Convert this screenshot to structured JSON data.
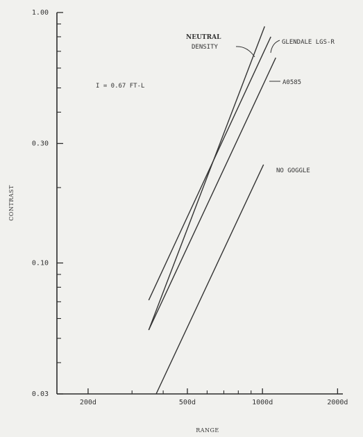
{
  "chart_data": {
    "type": "line",
    "title": "",
    "xlabel": "RANGE",
    "ylabel": "CONTRAST",
    "x_scale": "log",
    "y_scale": "log",
    "xlim": [
      150,
      2100
    ],
    "ylim": [
      0.03,
      1.0
    ],
    "x_ticks": [
      {
        "value": 200,
        "label": "200d"
      },
      {
        "value": 500,
        "label": "500d"
      },
      {
        "value": 1000,
        "label": "1000d"
      },
      {
        "value": 2000,
        "label": "2000d"
      }
    ],
    "x_minor_ticks": [
      300,
      400,
      600,
      700,
      800,
      900
    ],
    "y_ticks": [
      {
        "value": 1.0,
        "label": "1.00"
      },
      {
        "value": 0.3,
        "label": "0.30"
      },
      {
        "value": 0.1,
        "label": "0.10"
      },
      {
        "value": 0.03,
        "label": "0.03"
      }
    ],
    "y_minor_ticks": [
      0.9,
      0.8,
      0.7,
      0.6,
      0.5,
      0.4,
      0.2,
      0.09,
      0.08,
      0.07,
      0.06,
      0.05,
      0.04
    ],
    "grid": false,
    "annotation": "I = 0.67 FT-L",
    "series": [
      {
        "name": "NEUTRAL DENSITY",
        "label_lines": [
          "NEUTRAL",
          "DENSITY"
        ],
        "x": [
          350,
          1020
        ],
        "y": [
          0.054,
          0.88
        ]
      },
      {
        "name": "GLENDALE LGS-R",
        "label_lines": [
          "GLENDALE LGS-R"
        ],
        "x": [
          350,
          1080
        ],
        "y": [
          0.071,
          0.8
        ]
      },
      {
        "name": "A0585",
        "label_lines": [
          "A0585"
        ],
        "x": [
          350,
          1130
        ],
        "y": [
          0.054,
          0.66
        ]
      },
      {
        "name": "NO GOGGLE",
        "label_lines": [
          "NO GOGGLE"
        ],
        "x": [
          375,
          1010
        ],
        "y": [
          0.03,
          0.247
        ]
      }
    ]
  }
}
